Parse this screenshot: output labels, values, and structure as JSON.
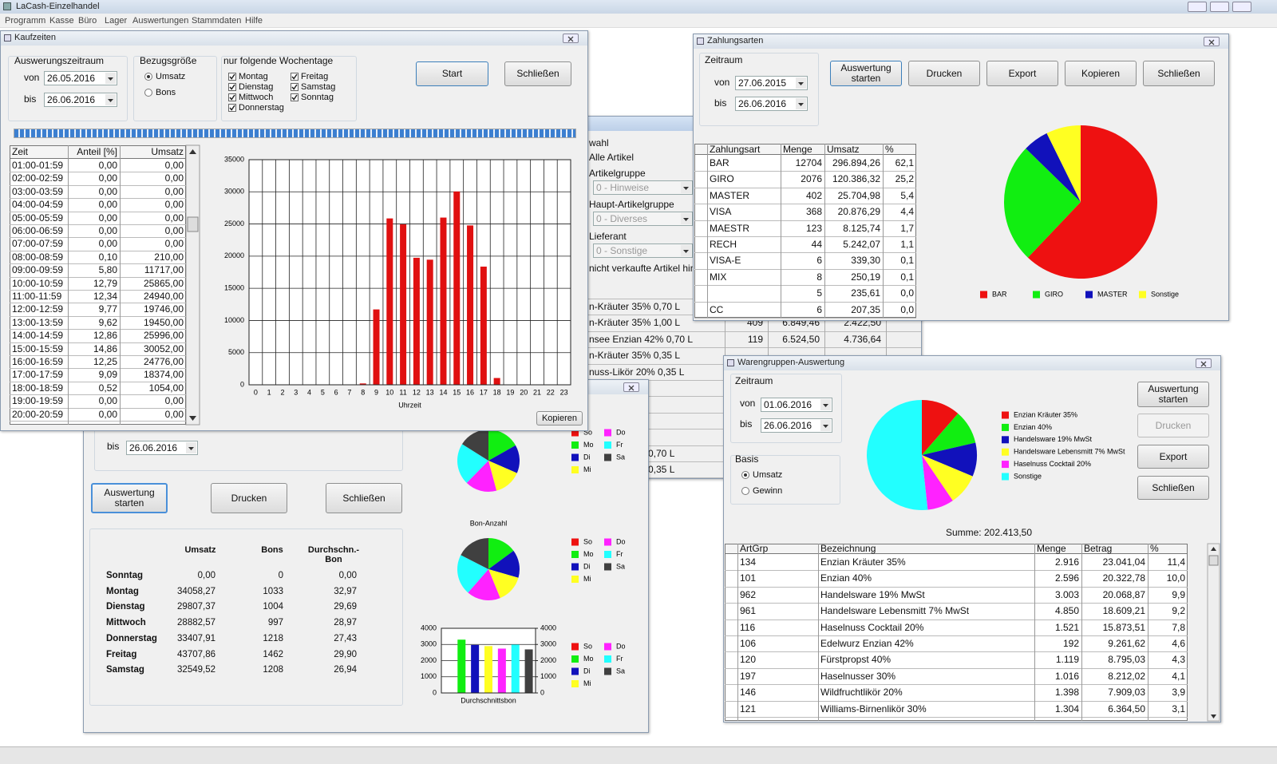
{
  "app": {
    "title": "LaCash-Einzelhandel",
    "menu": [
      "Programm",
      "Kasse",
      "Büro",
      "Lager",
      "Auswertungen",
      "Stammdaten",
      "Hilfe"
    ]
  },
  "kaufzeiten": {
    "title": "Kaufzeiten",
    "zeitraum_label": "Auswerungszeitraum",
    "von_label": "von",
    "von": "26.05.2016",
    "bis_label": "bis",
    "bis": "26.06.2016",
    "bezug_label": "Bezugsgröße",
    "bezug_options": [
      "Umsatz",
      "Bons"
    ],
    "tage_label": "nur folgende Wochentage",
    "tage": [
      "Montag",
      "Dienstag",
      "Mittwoch",
      "Donnerstag",
      "Freitag",
      "Samstag",
      "Sonntag"
    ],
    "buttons": [
      "Start",
      "Schließen"
    ],
    "copy_button": "Kopieren",
    "table": {
      "columns": [
        "Zeit",
        "Anteil [%]",
        "Umsatz"
      ],
      "rows": [
        [
          "01:00-01:59",
          "0,00",
          "0,00"
        ],
        [
          "02:00-02:59",
          "0,00",
          "0,00"
        ],
        [
          "03:00-03:59",
          "0,00",
          "0,00"
        ],
        [
          "04:00-04:59",
          "0,00",
          "0,00"
        ],
        [
          "05:00-05:59",
          "0,00",
          "0,00"
        ],
        [
          "06:00-06:59",
          "0,00",
          "0,00"
        ],
        [
          "07:00-07:59",
          "0,00",
          "0,00"
        ],
        [
          "08:00-08:59",
          "0,10",
          "210,00"
        ],
        [
          "09:00-09:59",
          "5,80",
          "11717,00"
        ],
        [
          "10:00-10:59",
          "12,79",
          "25865,00"
        ],
        [
          "11:00-11:59",
          "12,34",
          "24940,00"
        ],
        [
          "12:00-12:59",
          "9,77",
          "19746,00"
        ],
        [
          "13:00-13:59",
          "9,62",
          "19450,00"
        ],
        [
          "14:00-14:59",
          "12,86",
          "25996,00"
        ],
        [
          "15:00-15:59",
          "14,86",
          "30052,00"
        ],
        [
          "16:00-16:59",
          "12,25",
          "24776,00"
        ],
        [
          "17:00-17:59",
          "9,09",
          "18374,00"
        ],
        [
          "18:00-18:59",
          "0,52",
          "1054,00"
        ],
        [
          "19:00-19:59",
          "0,00",
          "0,00"
        ],
        [
          "20:00-20:59",
          "0,00",
          "0,00"
        ]
      ]
    }
  },
  "artikel_fenster": {
    "labels": [
      "wahl",
      "Alle Artikel",
      "Artikelgruppe",
      "Haupt-Artikelgruppe",
      "Lieferant",
      "nicht verkaufte Artikel hinzu"
    ],
    "selects": [
      "0 - Hinweise",
      "0 - Diverses",
      "0 - Sonstige"
    ],
    "rows": [
      [
        "n-Kräuter 35% 0,70 L"
      ],
      [
        "n-Kräuter 35% 1,00 L",
        "409",
        "6.849,46",
        "2.422,50"
      ],
      [
        "nsee Enzian 42% 0,70 L",
        "119",
        "6.524,50",
        "4.736,64"
      ],
      [
        "n-Kräuter 35% 0,35 L"
      ],
      [
        "nuss-Likör 20% 0,35 L"
      ],
      [
        "% 0,70 L"
      ]
    ],
    "rows_lower": [
      "0,70 L",
      "0,35 L"
    ]
  },
  "wochentage": {
    "bis_label": "bis",
    "bis": "26.06.2016",
    "buttons": [
      "Auswertung starten",
      "Drucken",
      "Schließen"
    ],
    "table": {
      "columns": [
        "Umsatz",
        "Bons",
        "Durchschn.-Bon"
      ],
      "rows": [
        [
          "Sonntag",
          "0,00",
          "0",
          "0,00"
        ],
        [
          "Montag",
          "34058,27",
          "1033",
          "32,97"
        ],
        [
          "Dienstag",
          "29807,37",
          "1004",
          "29,69"
        ],
        [
          "Mittwoch",
          "28882,57",
          "997",
          "28,97"
        ],
        [
          "Donnerstag",
          "33407,91",
          "1218",
          "27,43"
        ],
        [
          "Freitag",
          "43707,86",
          "1462",
          "29,90"
        ],
        [
          "Samstag",
          "32549,52",
          "1208",
          "26,94"
        ]
      ]
    }
  },
  "zahlungsarten": {
    "title": "Zahlungsarten",
    "zeitraum_label": "Zeitraum",
    "von_label": "von",
    "von": "27.06.2015",
    "bis_label": "bis",
    "bis": "26.06.2016",
    "buttons": [
      "Auswertung starten",
      "Drucken",
      "Export",
      "Kopieren",
      "Schließen"
    ],
    "table": {
      "columns": [
        "Zahlungsart",
        "Menge",
        "Umsatz",
        "%"
      ],
      "rows": [
        [
          "BAR",
          "12704",
          "296.894,26",
          "62,1"
        ],
        [
          "GIRO",
          "2076",
          "120.386,32",
          "25,2"
        ],
        [
          "MASTER",
          "402",
          "25.704,98",
          "5,4"
        ],
        [
          "VISA",
          "368",
          "20.876,29",
          "4,4"
        ],
        [
          "MAESTR",
          "123",
          "8.125,74",
          "1,7"
        ],
        [
          "RECH",
          "44",
          "5.242,07",
          "1,1"
        ],
        [
          "VISA-E",
          "6",
          "339,30",
          "0,1"
        ],
        [
          "MIX",
          "8",
          "250,19",
          "0,1"
        ],
        [
          null,
          "5",
          "235,61",
          "0,0"
        ],
        [
          "CC",
          "6",
          "207,35",
          "0,0"
        ]
      ]
    }
  },
  "warengruppen": {
    "title": "Warengruppen-Auswertung",
    "zeitraum_label": "Zeitraum",
    "von_label": "von",
    "von": "01.06.2016",
    "bis_label": "bis",
    "bis": "26.06.2016",
    "basis_label": "Basis",
    "basis_options": [
      "Umsatz",
      "Gewinn"
    ],
    "buttons": [
      "Auswertung starten",
      "Drucken",
      "Export",
      "Schließen"
    ],
    "summe": "Summe: 202.413,50",
    "table": {
      "columns": [
        "ArtGrp",
        "Bezeichnung",
        "Menge",
        "Betrag",
        "%"
      ],
      "rows": [
        [
          "134",
          "Enzian Kräuter 35%",
          "2.916",
          "23.041,04",
          "11,4"
        ],
        [
          "101",
          "Enzian 40%",
          "2.596",
          "20.322,78",
          "10,0"
        ],
        [
          "962",
          "Handelsware 19% MwSt",
          "3.003",
          "20.068,87",
          "9,9"
        ],
        [
          "961",
          "Handelsware Lebensmitt 7% MwSt",
          "4.850",
          "18.609,21",
          "9,2"
        ],
        [
          "116",
          "Haselnuss Cocktail 20%",
          "1.521",
          "15.873,51",
          "7,8"
        ],
        [
          "106",
          "Edelwurz Enzian 42%",
          "192",
          "9.261,62",
          "4,6"
        ],
        [
          "120",
          "Fürstpropst 40%",
          "1.119",
          "8.795,03",
          "4,3"
        ],
        [
          "197",
          "Haselnusser 30%",
          "1.016",
          "8.212,02",
          "4,1"
        ],
        [
          "146",
          "Wildfruchtlikör 20%",
          "1.398",
          "7.909,03",
          "3,9"
        ],
        [
          "121",
          "Williams-Birnenlikör 30%",
          "1.304",
          "6.364,50",
          "3,1"
        ]
      ]
    }
  },
  "chart_data": [
    {
      "type": "bar",
      "categories": [
        "0",
        "1",
        "2",
        "3",
        "4",
        "5",
        "6",
        "7",
        "8",
        "9",
        "10",
        "11",
        "12",
        "13",
        "14",
        "15",
        "16",
        "17",
        "18",
        "19",
        "20",
        "21",
        "22",
        "23"
      ],
      "values": [
        0,
        0,
        0,
        0,
        0,
        0,
        0,
        0,
        210,
        11717,
        25865,
        24940,
        19746,
        19450,
        25996,
        30052,
        24776,
        18374,
        1054,
        0,
        0,
        0,
        0,
        0
      ],
      "color": "#e01010",
      "ylim": [
        0,
        35000
      ],
      "yticks": [
        0,
        5000,
        10000,
        15000,
        20000,
        25000,
        30000,
        35000
      ],
      "xlabel": "Uhrzeit",
      "grid": true
    },
    {
      "type": "pie",
      "categories": [
        "So",
        "Mo",
        "Di",
        "Mi",
        "Do",
        "Fr",
        "Sa"
      ],
      "values": [
        0,
        34058.27,
        29807.37,
        28882.57,
        33407.91,
        43707.86,
        32549.52
      ],
      "colors": [
        "#ee1111",
        "#11ee11",
        "#1111bb",
        "#ffff22",
        "#ff22ff",
        "#22ffff",
        "#404040"
      ]
    },
    {
      "type": "pie",
      "title": "Bon-Anzahl",
      "categories": [
        "So",
        "Mo",
        "Di",
        "Mi",
        "Do",
        "Fr",
        "Sa"
      ],
      "values": [
        0,
        1033,
        1004,
        997,
        1218,
        1462,
        1208
      ],
      "colors": [
        "#ee1111",
        "#11ee11",
        "#1111bb",
        "#ffff22",
        "#ff22ff",
        "#22ffff",
        "#404040"
      ]
    },
    {
      "type": "bar",
      "xlabel": "Durchschnittsbon",
      "categories": [
        "So",
        "Mo",
        "Di",
        "Mi",
        "Do",
        "Fr",
        "Sa"
      ],
      "values": [
        0,
        3297,
        2969,
        2897,
        2743,
        2990,
        2694
      ],
      "colors": [
        "#ee1111",
        "#11ee11",
        "#1111bb",
        "#ffff22",
        "#ff22ff",
        "#22ffff",
        "#404040"
      ],
      "ylim": [
        0,
        4000
      ],
      "yticks": [
        0,
        1000,
        2000,
        3000,
        4000
      ],
      "y2lim": [
        0,
        4000
      ],
      "y2ticks": [
        0,
        1000,
        2000,
        3000,
        4000
      ],
      "grid": true
    },
    {
      "type": "pie",
      "categories": [
        "BAR",
        "GIRO",
        "MASTER",
        "Sonstige"
      ],
      "values": [
        62.1,
        25.2,
        5.4,
        7.3
      ],
      "colors": [
        "#ee1111",
        "#11ee11",
        "#1111bb",
        "#ffff22"
      ]
    },
    {
      "type": "pie",
      "categories": [
        "Enzian Kräuter 35%",
        "Enzian 40%",
        "Handelsware 19% MwSt",
        "Handelsware Lebensmitt 7% MwSt",
        "Haselnuss Cocktail 20%",
        "Sonstige"
      ],
      "values": [
        11.4,
        10.0,
        9.9,
        9.2,
        7.8,
        51.7
      ],
      "colors": [
        "#ee1111",
        "#11ee11",
        "#1111bb",
        "#ffff22",
        "#ff22ff",
        "#22ffff"
      ]
    }
  ]
}
